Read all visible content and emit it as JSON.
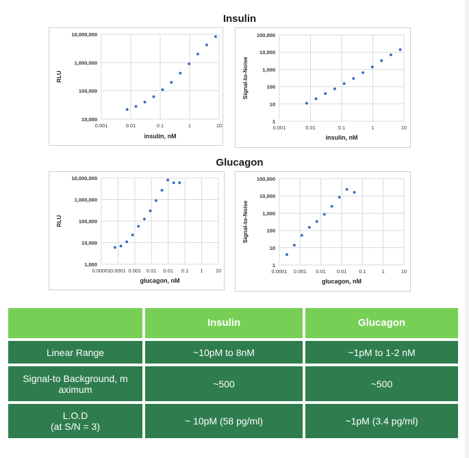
{
  "charts": {
    "insulin_title": "Insulin",
    "glucagon_title": "Glucagon"
  },
  "chart_data": [
    {
      "type": "scatter",
      "group": "Insulin",
      "xlabel": "insulin, nM",
      "ylabel": "RLU",
      "xscale": "log",
      "yscale": "log",
      "xlim": [
        0.001,
        10
      ],
      "ylim": [
        10000,
        10000000
      ],
      "xticks": [
        "0.001",
        "0.01",
        "0.1",
        "1",
        "10"
      ],
      "yticks": [
        "10,000",
        "100,000",
        "1,000,000",
        "10,000,000"
      ],
      "grid": true,
      "color": "#3d6fc0",
      "x": [
        0.0075,
        0.015,
        0.03,
        0.06,
        0.12,
        0.24,
        0.48,
        0.96,
        1.9,
        3.8,
        7.6
      ],
      "y": [
        22000,
        28000,
        40000,
        62000,
        110000,
        200000,
        420000,
        900000,
        2000000,
        4200000,
        8300000
      ]
    },
    {
      "type": "scatter",
      "group": "Insulin",
      "xlabel": "insulin, nM",
      "ylabel": "Signal-to-Noise",
      "xscale": "log",
      "yscale": "log",
      "xlim": [
        0.001,
        10
      ],
      "ylim": [
        1,
        100000
      ],
      "xticks": [
        "0.001",
        "0.01",
        "0.1",
        "1",
        "10"
      ],
      "yticks": [
        "1",
        "10",
        "100",
        "1,000",
        "10,000",
        "100,000"
      ],
      "grid": true,
      "color": "#3d6fc0",
      "x": [
        0.0075,
        0.015,
        0.03,
        0.06,
        0.12,
        0.24,
        0.48,
        0.96,
        1.9,
        3.8,
        7.6
      ],
      "y": [
        11,
        20,
        40,
        75,
        150,
        300,
        650,
        1400,
        3200,
        7000,
        14000
      ]
    },
    {
      "type": "scatter",
      "group": "Glucagon",
      "xlabel": "glucagon, nM",
      "ylabel": "RLU",
      "xscale": "log",
      "yscale": "log",
      "xlim": [
        1e-05,
        10
      ],
      "ylim": [
        1000,
        10000000
      ],
      "xticks": [
        "0.00001",
        "0.0001",
        "0.001",
        "0.01",
        "0.01",
        "0.1",
        "1",
        "10"
      ],
      "yticks": [
        "1,000",
        "10,000",
        "100,000",
        "1,000,000",
        "10,000,000"
      ],
      "grid": true,
      "color": "#3d6fc0",
      "x": [
        5e-05,
        0.0001,
        0.0002,
        0.0004,
        0.0008,
        0.0016,
        0.0032,
        0.0064,
        0.0128,
        0.0256,
        0.0512,
        0.1024
      ],
      "y": [
        6000,
        7000,
        11000,
        23000,
        58000,
        125000,
        300000,
        900000,
        2700000,
        8000000,
        6000000,
        6000000
      ]
    },
    {
      "type": "scatter",
      "group": "Glucagon",
      "xlabel": "glucagon, nM",
      "ylabel": "Signal-to-Noise",
      "xscale": "log",
      "yscale": "log",
      "xlim": [
        0.0001,
        10
      ],
      "ylim": [
        1,
        100000
      ],
      "xticks": [
        "0.0001",
        "0.001",
        "0.01",
        "0.01",
        "0.1",
        "1",
        "10"
      ],
      "yticks": [
        "1",
        "10",
        "100",
        "1,000",
        "10,000",
        "100,000"
      ],
      "grid": true,
      "color": "#3d6fc0",
      "x": [
        0.0002,
        0.0004,
        0.0008,
        0.0016,
        0.0032,
        0.0064,
        0.0128,
        0.0256,
        0.0512,
        0.1024
      ],
      "y": [
        4,
        14,
        52,
        150,
        330,
        850,
        2500,
        8500,
        24000,
        16000
      ]
    }
  ],
  "table": {
    "headers": [
      "",
      "Insulin",
      "Glucagon"
    ],
    "rows": [
      {
        "label": "Linear Range",
        "insulin": "~10pM to 8nM",
        "glucagon": "~1pM to 1-2 nM"
      },
      {
        "label": "Signal-to Background, m\naximum",
        "insulin": "~500",
        "glucagon": "~500"
      },
      {
        "label": "L.O.D\n(at S/N = 3)",
        "insulin": "~ 10pM (58 pg/ml)",
        "glucagon": "~1pM (3.4 pg/ml)"
      }
    ]
  }
}
